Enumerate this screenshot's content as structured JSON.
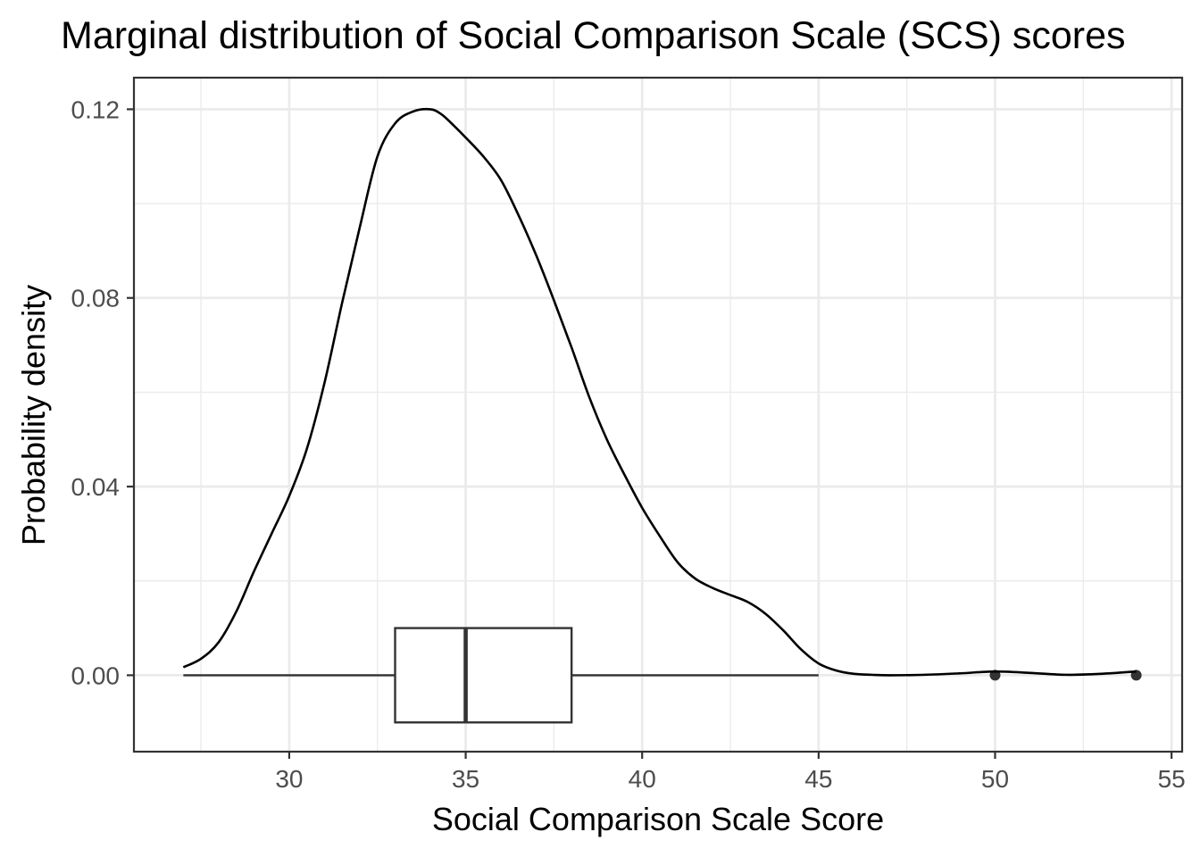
{
  "chart_data": {
    "type": "density",
    "title": "Marginal distribution of Social Comparison Scale (SCS) scores",
    "xlabel": "Social Comparison Scale Score",
    "ylabel": "Probability density",
    "xlim": [
      25.6,
      55.3
    ],
    "ylim": [
      -0.0162,
      0.1267
    ],
    "x_ticks": [
      30,
      35,
      40,
      45,
      50,
      55
    ],
    "x_tick_labels": [
      "30",
      "35",
      "40",
      "45",
      "50",
      "55"
    ],
    "y_ticks": [
      0.0,
      0.04,
      0.08,
      0.12
    ],
    "y_tick_labels": [
      "0.00",
      "0.04",
      "0.08",
      "0.12"
    ],
    "grid": true,
    "density": {
      "x": [
        27.0,
        27.5,
        28.0,
        28.5,
        29.0,
        29.5,
        30.0,
        30.5,
        31.0,
        31.5,
        32.0,
        32.5,
        33.0,
        33.5,
        34.0,
        34.3,
        34.6,
        35.0,
        35.5,
        36.0,
        36.5,
        37.0,
        37.5,
        38.0,
        38.5,
        39.0,
        39.5,
        40.0,
        40.5,
        41.0,
        41.5,
        42.0,
        42.5,
        43.0,
        43.5,
        44.0,
        44.5,
        45.0,
        45.5,
        46.0,
        46.5,
        47.0,
        48.0,
        49.0,
        50.0,
        51.0,
        52.0,
        53.0,
        54.0
      ],
      "y": [
        0.0017,
        0.0035,
        0.007,
        0.0135,
        0.022,
        0.03,
        0.038,
        0.048,
        0.062,
        0.079,
        0.095,
        0.11,
        0.117,
        0.1195,
        0.12,
        0.119,
        0.117,
        0.114,
        0.11,
        0.105,
        0.0975,
        0.089,
        0.0795,
        0.0695,
        0.059,
        0.05,
        0.0425,
        0.0355,
        0.0295,
        0.024,
        0.0205,
        0.0185,
        0.017,
        0.0155,
        0.013,
        0.0095,
        0.0055,
        0.0025,
        0.001,
        0.0003,
        0.0001,
        0.0,
        0.0001,
        0.0004,
        0.0008,
        0.0005,
        0.0001,
        0.0003,
        0.0008
      ]
    },
    "boxplot": {
      "y_position": 0.0,
      "whisker_low": 27,
      "q1": 33,
      "median": 35,
      "q3": 38,
      "whisker_high": 45,
      "box_half_height": 0.01,
      "outliers": [
        50,
        54
      ]
    },
    "colors": {
      "density_line": "#000000",
      "box_stroke": "#333333",
      "grid": "#ebebeb",
      "tick_text": "#4d4d4d"
    }
  }
}
